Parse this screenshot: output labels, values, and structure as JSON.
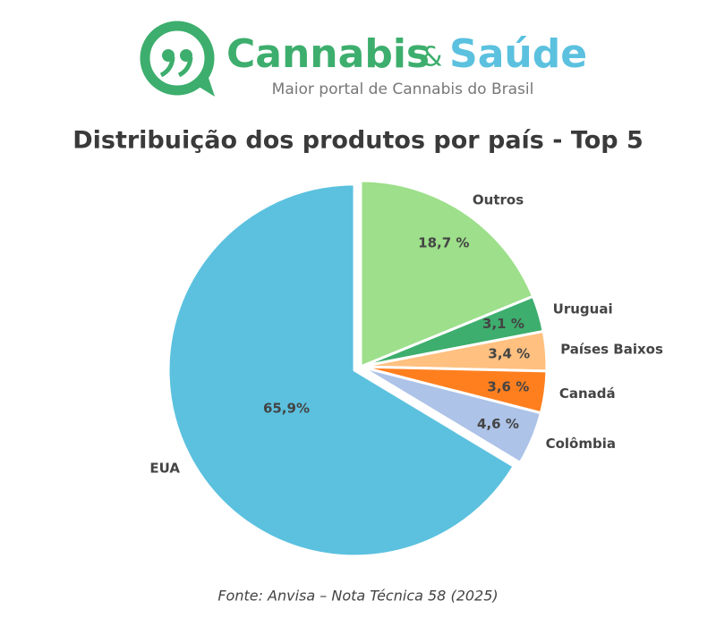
{
  "header": {
    "brand_first": "Cannabis",
    "brand_amp": "&",
    "brand_second": "Saúde",
    "tagline": "Maior portal de Cannabis do Brasil"
  },
  "chart_data": {
    "type": "pie",
    "title": "Distribuição dos produtos por país - Top 5",
    "categories": [
      "Outros",
      "Uruguai",
      "Países Baixos",
      "Canadá",
      "Colômbia",
      "EUA"
    ],
    "values": [
      18.7,
      3.1,
      3.4,
      3.6,
      4.6,
      65.9
    ],
    "value_labels": [
      "18,7 %",
      "3,1 %",
      "3,4 %",
      "3,6 %",
      "4,6 %",
      "65,9%"
    ],
    "colors": [
      "#9ddf8a",
      "#3dae6d",
      "#ffc080",
      "#ff7f1f",
      "#adc3e8",
      "#5bc1df"
    ],
    "source": "Fonte: Anvisa – Nota Técnica 58 (2025)"
  }
}
